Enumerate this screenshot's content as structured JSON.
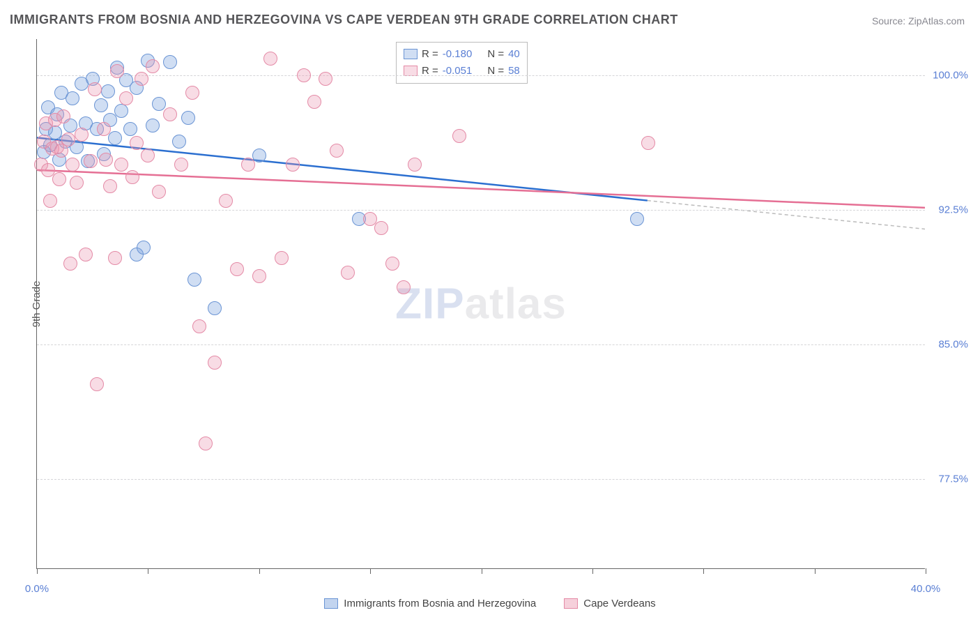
{
  "title": "IMMIGRANTS FROM BOSNIA AND HERZEGOVINA VS CAPE VERDEAN 9TH GRADE CORRELATION CHART",
  "source": "Source: ZipAtlas.com",
  "watermark_zip": "ZIP",
  "watermark_atlas": "atlas",
  "y_axis_label": "9th Grade",
  "chart": {
    "type": "scatter",
    "background_color": "#ffffff",
    "grid_color": "#d5d5d8",
    "axis_color": "#666666",
    "label_color_axis": "#5a7fd4",
    "xlim": [
      0,
      40
    ],
    "ylim": [
      72.5,
      102.0
    ],
    "x_ticks": [
      0,
      5,
      10,
      15,
      20,
      25,
      30,
      35,
      40
    ],
    "x_tick_labels": {
      "0": "0.0%",
      "40": "40.0%"
    },
    "y_ticks": [
      77.5,
      85.0,
      92.5,
      100.0
    ],
    "y_tick_labels": [
      "77.5%",
      "85.0%",
      "92.5%",
      "100.0%"
    ],
    "marker_radius": 10,
    "series": [
      {
        "name": "Immigrants from Bosnia and Herzegovina",
        "short": "bosnia",
        "fill": "rgba(120,160,220,0.35)",
        "stroke": "#6a94d4",
        "line_color": "#2b6fd0",
        "r_label": "R =",
        "r_value": "-0.180",
        "n_label": "N =",
        "n_value": "40",
        "trend": {
          "x1": 0,
          "y1": 96.5,
          "x2": 27.5,
          "y2": 93.0,
          "dashed_to_x": 40
        },
        "points": [
          [
            0.3,
            95.7
          ],
          [
            0.4,
            97.0
          ],
          [
            0.5,
            98.2
          ],
          [
            0.6,
            96.1
          ],
          [
            0.8,
            96.8
          ],
          [
            0.9,
            97.8
          ],
          [
            1.0,
            95.3
          ],
          [
            1.1,
            99.0
          ],
          [
            1.3,
            96.3
          ],
          [
            1.5,
            97.2
          ],
          [
            1.6,
            98.7
          ],
          [
            1.8,
            96.0
          ],
          [
            2.0,
            99.5
          ],
          [
            2.2,
            97.3
          ],
          [
            2.3,
            95.2
          ],
          [
            2.5,
            99.8
          ],
          [
            2.7,
            97.0
          ],
          [
            2.9,
            98.3
          ],
          [
            3.0,
            95.6
          ],
          [
            3.2,
            99.1
          ],
          [
            3.3,
            97.5
          ],
          [
            3.5,
            96.5
          ],
          [
            3.6,
            100.4
          ],
          [
            3.8,
            98.0
          ],
          [
            4.0,
            99.7
          ],
          [
            4.2,
            97.0
          ],
          [
            4.5,
            99.3
          ],
          [
            4.5,
            90.0
          ],
          [
            5.0,
            100.8
          ],
          [
            5.2,
            97.2
          ],
          [
            5.5,
            98.4
          ],
          [
            6.0,
            100.7
          ],
          [
            6.4,
            96.3
          ],
          [
            6.8,
            97.6
          ],
          [
            7.1,
            88.6
          ],
          [
            8.0,
            87.0
          ],
          [
            10.0,
            95.5
          ],
          [
            14.5,
            92.0
          ],
          [
            27.0,
            92.0
          ],
          [
            4.8,
            90.4
          ]
        ]
      },
      {
        "name": "Cape Verdeans",
        "short": "capeverde",
        "fill": "rgba(235,150,175,0.33)",
        "stroke": "#e48aa6",
        "line_color": "#e56f94",
        "r_label": "R =",
        "r_value": "-0.051",
        "n_label": "N =",
        "n_value": "58",
        "trend": {
          "x1": 0,
          "y1": 94.7,
          "x2": 40,
          "y2": 92.6,
          "dashed_to_x": 40
        },
        "points": [
          [
            0.2,
            95.0
          ],
          [
            0.3,
            96.3
          ],
          [
            0.4,
            97.3
          ],
          [
            0.5,
            94.7
          ],
          [
            0.6,
            93.0
          ],
          [
            0.7,
            95.9
          ],
          [
            0.8,
            97.5
          ],
          [
            0.9,
            96.0
          ],
          [
            1.0,
            94.2
          ],
          [
            1.1,
            95.8
          ],
          [
            1.2,
            97.7
          ],
          [
            1.4,
            96.4
          ],
          [
            1.5,
            89.5
          ],
          [
            1.6,
            95.0
          ],
          [
            1.8,
            94.0
          ],
          [
            2.0,
            96.7
          ],
          [
            2.2,
            90.0
          ],
          [
            2.4,
            95.2
          ],
          [
            2.6,
            99.2
          ],
          [
            2.7,
            82.8
          ],
          [
            3.0,
            97.0
          ],
          [
            3.1,
            95.3
          ],
          [
            3.3,
            93.8
          ],
          [
            3.5,
            89.8
          ],
          [
            3.6,
            100.2
          ],
          [
            3.8,
            95.0
          ],
          [
            4.0,
            98.7
          ],
          [
            4.3,
            94.3
          ],
          [
            4.5,
            96.2
          ],
          [
            4.7,
            99.8
          ],
          [
            5.0,
            95.5
          ],
          [
            5.2,
            100.5
          ],
          [
            5.5,
            93.5
          ],
          [
            6.0,
            97.8
          ],
          [
            6.5,
            95.0
          ],
          [
            7.0,
            99.0
          ],
          [
            7.3,
            86.0
          ],
          [
            7.6,
            79.5
          ],
          [
            8.0,
            84.0
          ],
          [
            8.5,
            93.0
          ],
          [
            9.0,
            89.2
          ],
          [
            9.5,
            95.0
          ],
          [
            10.0,
            88.8
          ],
          [
            10.5,
            100.9
          ],
          [
            11.0,
            89.8
          ],
          [
            11.5,
            95.0
          ],
          [
            12.0,
            100.0
          ],
          [
            12.5,
            98.5
          ],
          [
            13.0,
            99.8
          ],
          [
            13.5,
            95.8
          ],
          [
            14.0,
            89.0
          ],
          [
            15.0,
            92.0
          ],
          [
            15.5,
            91.5
          ],
          [
            16.0,
            89.5
          ],
          [
            16.5,
            88.2
          ],
          [
            19.0,
            96.6
          ],
          [
            27.5,
            96.2
          ],
          [
            17.0,
            95.0
          ]
        ]
      }
    ]
  },
  "bottom_legend": [
    {
      "label": "Immigrants from Bosnia and Herzegovina",
      "fill": "rgba(120,160,220,0.45)",
      "stroke": "#6a94d4"
    },
    {
      "label": "Cape Verdeans",
      "fill": "rgba(235,150,175,0.45)",
      "stroke": "#e48aa6"
    }
  ]
}
